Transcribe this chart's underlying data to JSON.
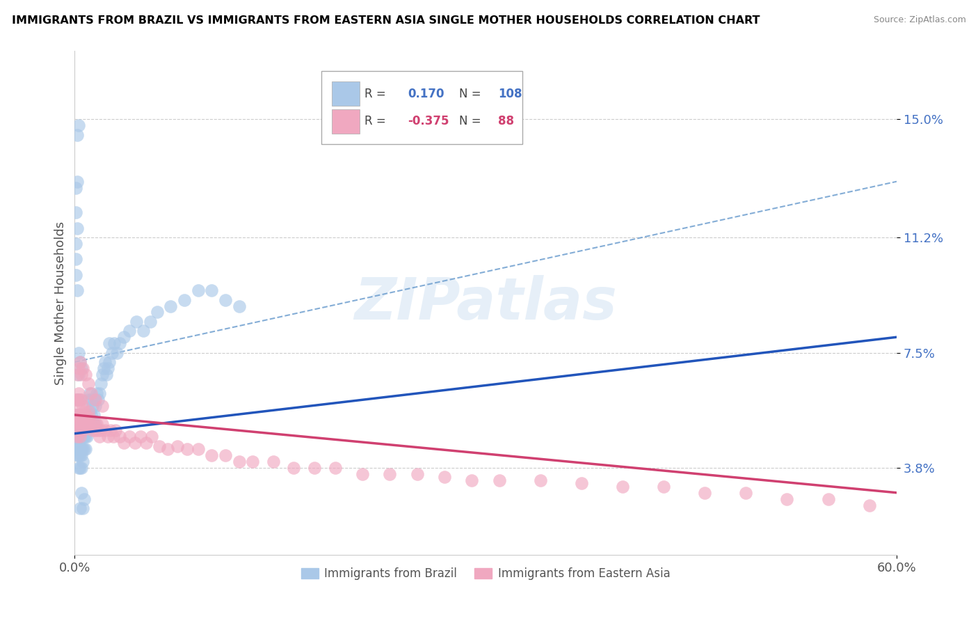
{
  "title": "IMMIGRANTS FROM BRAZIL VS IMMIGRANTS FROM EASTERN ASIA SINGLE MOTHER HOUSEHOLDS CORRELATION CHART",
  "source": "Source: ZipAtlas.com",
  "ylabel": "Single Mother Households",
  "yticks": [
    0.038,
    0.075,
    0.112,
    0.15
  ],
  "ytick_labels": [
    "3.8%",
    "7.5%",
    "11.2%",
    "15.0%"
  ],
  "xlim": [
    0.0,
    0.6
  ],
  "ylim": [
    0.01,
    0.172
  ],
  "brazil_R": 0.17,
  "brazil_N": 108,
  "eastern_asia_R": -0.375,
  "eastern_asia_N": 88,
  "brazil_color": "#aac8e8",
  "eastern_asia_color": "#f0a8c0",
  "brazil_line_color": "#2255bb",
  "eastern_asia_line_color": "#d04070",
  "dashed_line_color": "#6699cc",
  "watermark_text": "ZIPatlas",
  "brazil_line_x0": 0.0,
  "brazil_line_y0": 0.049,
  "brazil_line_x1": 0.6,
  "brazil_line_y1": 0.08,
  "eastern_line_x0": 0.0,
  "eastern_line_y0": 0.055,
  "eastern_line_x1": 0.6,
  "eastern_line_y1": 0.03,
  "dashed_line_x0": 0.0,
  "dashed_line_y0": 0.072,
  "dashed_line_x1": 0.6,
  "dashed_line_y1": 0.13,
  "legend_brazil_R": "0.170",
  "legend_brazil_N": "108",
  "legend_eastern_R": "-0.375",
  "legend_eastern_N": "88",
  "brazil_points_x": [
    0.001,
    0.001,
    0.001,
    0.001,
    0.001,
    0.002,
    0.002,
    0.002,
    0.002,
    0.002,
    0.002,
    0.002,
    0.003,
    0.003,
    0.003,
    0.003,
    0.003,
    0.003,
    0.003,
    0.003,
    0.003,
    0.004,
    0.004,
    0.004,
    0.004,
    0.004,
    0.004,
    0.004,
    0.005,
    0.005,
    0.005,
    0.005,
    0.005,
    0.005,
    0.006,
    0.006,
    0.006,
    0.006,
    0.006,
    0.007,
    0.007,
    0.007,
    0.007,
    0.008,
    0.008,
    0.008,
    0.008,
    0.009,
    0.009,
    0.009,
    0.01,
    0.01,
    0.01,
    0.011,
    0.011,
    0.012,
    0.012,
    0.013,
    0.013,
    0.014,
    0.014,
    0.015,
    0.015,
    0.016,
    0.017,
    0.018,
    0.019,
    0.02,
    0.021,
    0.022,
    0.023,
    0.024,
    0.025,
    0.027,
    0.029,
    0.031,
    0.033,
    0.036,
    0.04,
    0.045,
    0.05,
    0.055,
    0.06,
    0.07,
    0.08,
    0.09,
    0.1,
    0.11,
    0.12,
    0.025,
    0.003,
    0.004,
    0.005,
    0.002,
    0.001,
    0.002,
    0.003,
    0.001,
    0.002,
    0.001,
    0.002,
    0.001,
    0.001,
    0.003,
    0.004,
    0.005,
    0.006,
    0.007
  ],
  "brazil_points_y": [
    0.05,
    0.052,
    0.048,
    0.055,
    0.045,
    0.05,
    0.052,
    0.048,
    0.06,
    0.044,
    0.046,
    0.042,
    0.055,
    0.05,
    0.052,
    0.048,
    0.06,
    0.044,
    0.046,
    0.042,
    0.038,
    0.055,
    0.05,
    0.048,
    0.044,
    0.052,
    0.042,
    0.038,
    0.055,
    0.05,
    0.048,
    0.044,
    0.042,
    0.038,
    0.055,
    0.05,
    0.048,
    0.044,
    0.04,
    0.055,
    0.05,
    0.048,
    0.044,
    0.055,
    0.05,
    0.048,
    0.044,
    0.055,
    0.05,
    0.048,
    0.06,
    0.055,
    0.05,
    0.062,
    0.056,
    0.06,
    0.055,
    0.058,
    0.052,
    0.06,
    0.055,
    0.058,
    0.052,
    0.062,
    0.06,
    0.062,
    0.065,
    0.068,
    0.07,
    0.072,
    0.068,
    0.07,
    0.072,
    0.075,
    0.078,
    0.075,
    0.078,
    0.08,
    0.082,
    0.085,
    0.082,
    0.085,
    0.088,
    0.09,
    0.092,
    0.095,
    0.095,
    0.092,
    0.09,
    0.078,
    0.068,
    0.072,
    0.07,
    0.13,
    0.128,
    0.145,
    0.148,
    0.12,
    0.115,
    0.11,
    0.095,
    0.1,
    0.105,
    0.075,
    0.025,
    0.03,
    0.025,
    0.028
  ],
  "eastern_points_x": [
    0.001,
    0.001,
    0.001,
    0.002,
    0.002,
    0.002,
    0.002,
    0.003,
    0.003,
    0.003,
    0.003,
    0.004,
    0.004,
    0.004,
    0.004,
    0.005,
    0.005,
    0.005,
    0.006,
    0.006,
    0.006,
    0.007,
    0.007,
    0.008,
    0.008,
    0.009,
    0.01,
    0.01,
    0.011,
    0.012,
    0.013,
    0.014,
    0.015,
    0.016,
    0.017,
    0.018,
    0.019,
    0.02,
    0.022,
    0.024,
    0.026,
    0.028,
    0.03,
    0.033,
    0.036,
    0.04,
    0.044,
    0.048,
    0.052,
    0.056,
    0.062,
    0.068,
    0.075,
    0.082,
    0.09,
    0.1,
    0.11,
    0.12,
    0.13,
    0.145,
    0.16,
    0.175,
    0.19,
    0.21,
    0.23,
    0.25,
    0.27,
    0.29,
    0.31,
    0.34,
    0.37,
    0.4,
    0.43,
    0.46,
    0.49,
    0.52,
    0.55,
    0.58,
    0.002,
    0.003,
    0.004,
    0.005,
    0.006,
    0.008,
    0.01,
    0.012,
    0.015,
    0.02
  ],
  "eastern_points_y": [
    0.06,
    0.055,
    0.052,
    0.06,
    0.055,
    0.052,
    0.048,
    0.062,
    0.058,
    0.054,
    0.05,
    0.06,
    0.055,
    0.052,
    0.048,
    0.06,
    0.055,
    0.052,
    0.058,
    0.054,
    0.05,
    0.056,
    0.052,
    0.055,
    0.052,
    0.054,
    0.056,
    0.052,
    0.054,
    0.052,
    0.05,
    0.052,
    0.05,
    0.052,
    0.05,
    0.048,
    0.05,
    0.052,
    0.05,
    0.048,
    0.05,
    0.048,
    0.05,
    0.048,
    0.046,
    0.048,
    0.046,
    0.048,
    0.046,
    0.048,
    0.045,
    0.044,
    0.045,
    0.044,
    0.044,
    0.042,
    0.042,
    0.04,
    0.04,
    0.04,
    0.038,
    0.038,
    0.038,
    0.036,
    0.036,
    0.036,
    0.035,
    0.034,
    0.034,
    0.034,
    0.033,
    0.032,
    0.032,
    0.03,
    0.03,
    0.028,
    0.028,
    0.026,
    0.068,
    0.07,
    0.072,
    0.068,
    0.07,
    0.068,
    0.065,
    0.062,
    0.06,
    0.058
  ]
}
